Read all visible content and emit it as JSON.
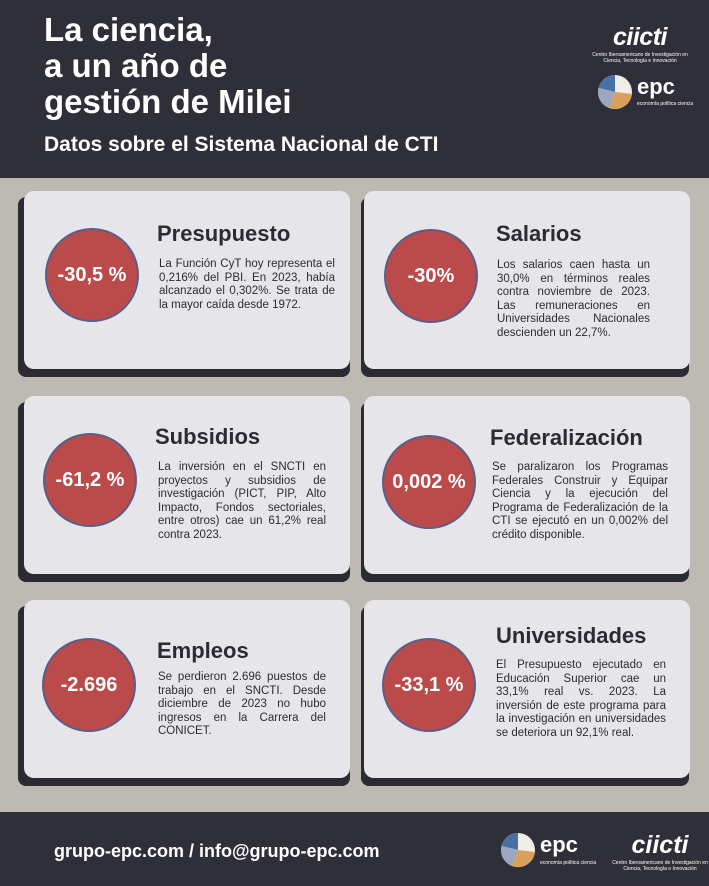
{
  "header": {
    "title_lines": [
      "La ciencia,",
      "a un año de",
      "gestión de Milei"
    ],
    "subtitle": "Datos sobre el Sistema Nacional de CTI",
    "ciicti_word": "ciicti",
    "ciicti_desc": "Centro Iberoamericano de Investigación en Ciencia, Tecnología e Innovación",
    "epc_word": "epc",
    "epc_tag": "economía política ciencia"
  },
  "cards": [
    {
      "value": "-30,5 %",
      "title": "Presupuesto",
      "text": "La Función CyT hoy representa el 0,216% del PBI. En 2023, había alcanzado el 0,302%. Se trata de la mayor caída desde 1972."
    },
    {
      "value": "-30%",
      "title": "Salarios",
      "text": "Los salarios caen hasta un 30,0% en términos reales contra noviembre de 2023. Las remuneraciones en Universidades Nacionales descienden un 22,7%."
    },
    {
      "value": "-61,2 %",
      "title": "Subsidios",
      "text": "La inversión en el SNCTI en proyectos y subsidios de investigación (PICT, PIP, Alto Impacto, Fondos sectoriales, entre otros) cae un 61,2% real contra 2023."
    },
    {
      "value": "0,002 %",
      "title": "Federalización",
      "text": "Se paralizaron los Programas Federales Construir y Equipar Ciencia y la ejecución del Programa de Federalización de la CTI se ejecutó en un 0,002% del crédito disponible."
    },
    {
      "value": "-2.696",
      "title": "Empleos",
      "text": "Se perdieron 2.696 puestos de trabajo en el SNCTI. Desde diciembre de 2023 no hubo ingresos en la Carrera del CONICET."
    },
    {
      "value": "-33,1 %",
      "title": "Universidades",
      "text": "El Presupuesto ejecutado en Educación Superior cae un 33,1% real vs. 2023. La inversión de este programa para la investigación en universidades se deteriora un 92,1% real."
    }
  ],
  "footer": {
    "contact": "grupo-epc.com / info@grupo-epc.com",
    "epc_word": "epc",
    "epc_tag": "economía política ciencia",
    "ciicti_word": "ciicti",
    "ciicti_desc": "Centro Iberoamericano de Investigación en Ciencia, Tecnología e Innovación"
  },
  "colors": {
    "header_bg": "#2f2f39",
    "page_bg": "#bdbab4",
    "card_bg": "#e6e6ea",
    "circle_fill": "#bb4a4a",
    "circle_border": "#5a5e88"
  },
  "icons": [
    "epc-logo-icon"
  ]
}
